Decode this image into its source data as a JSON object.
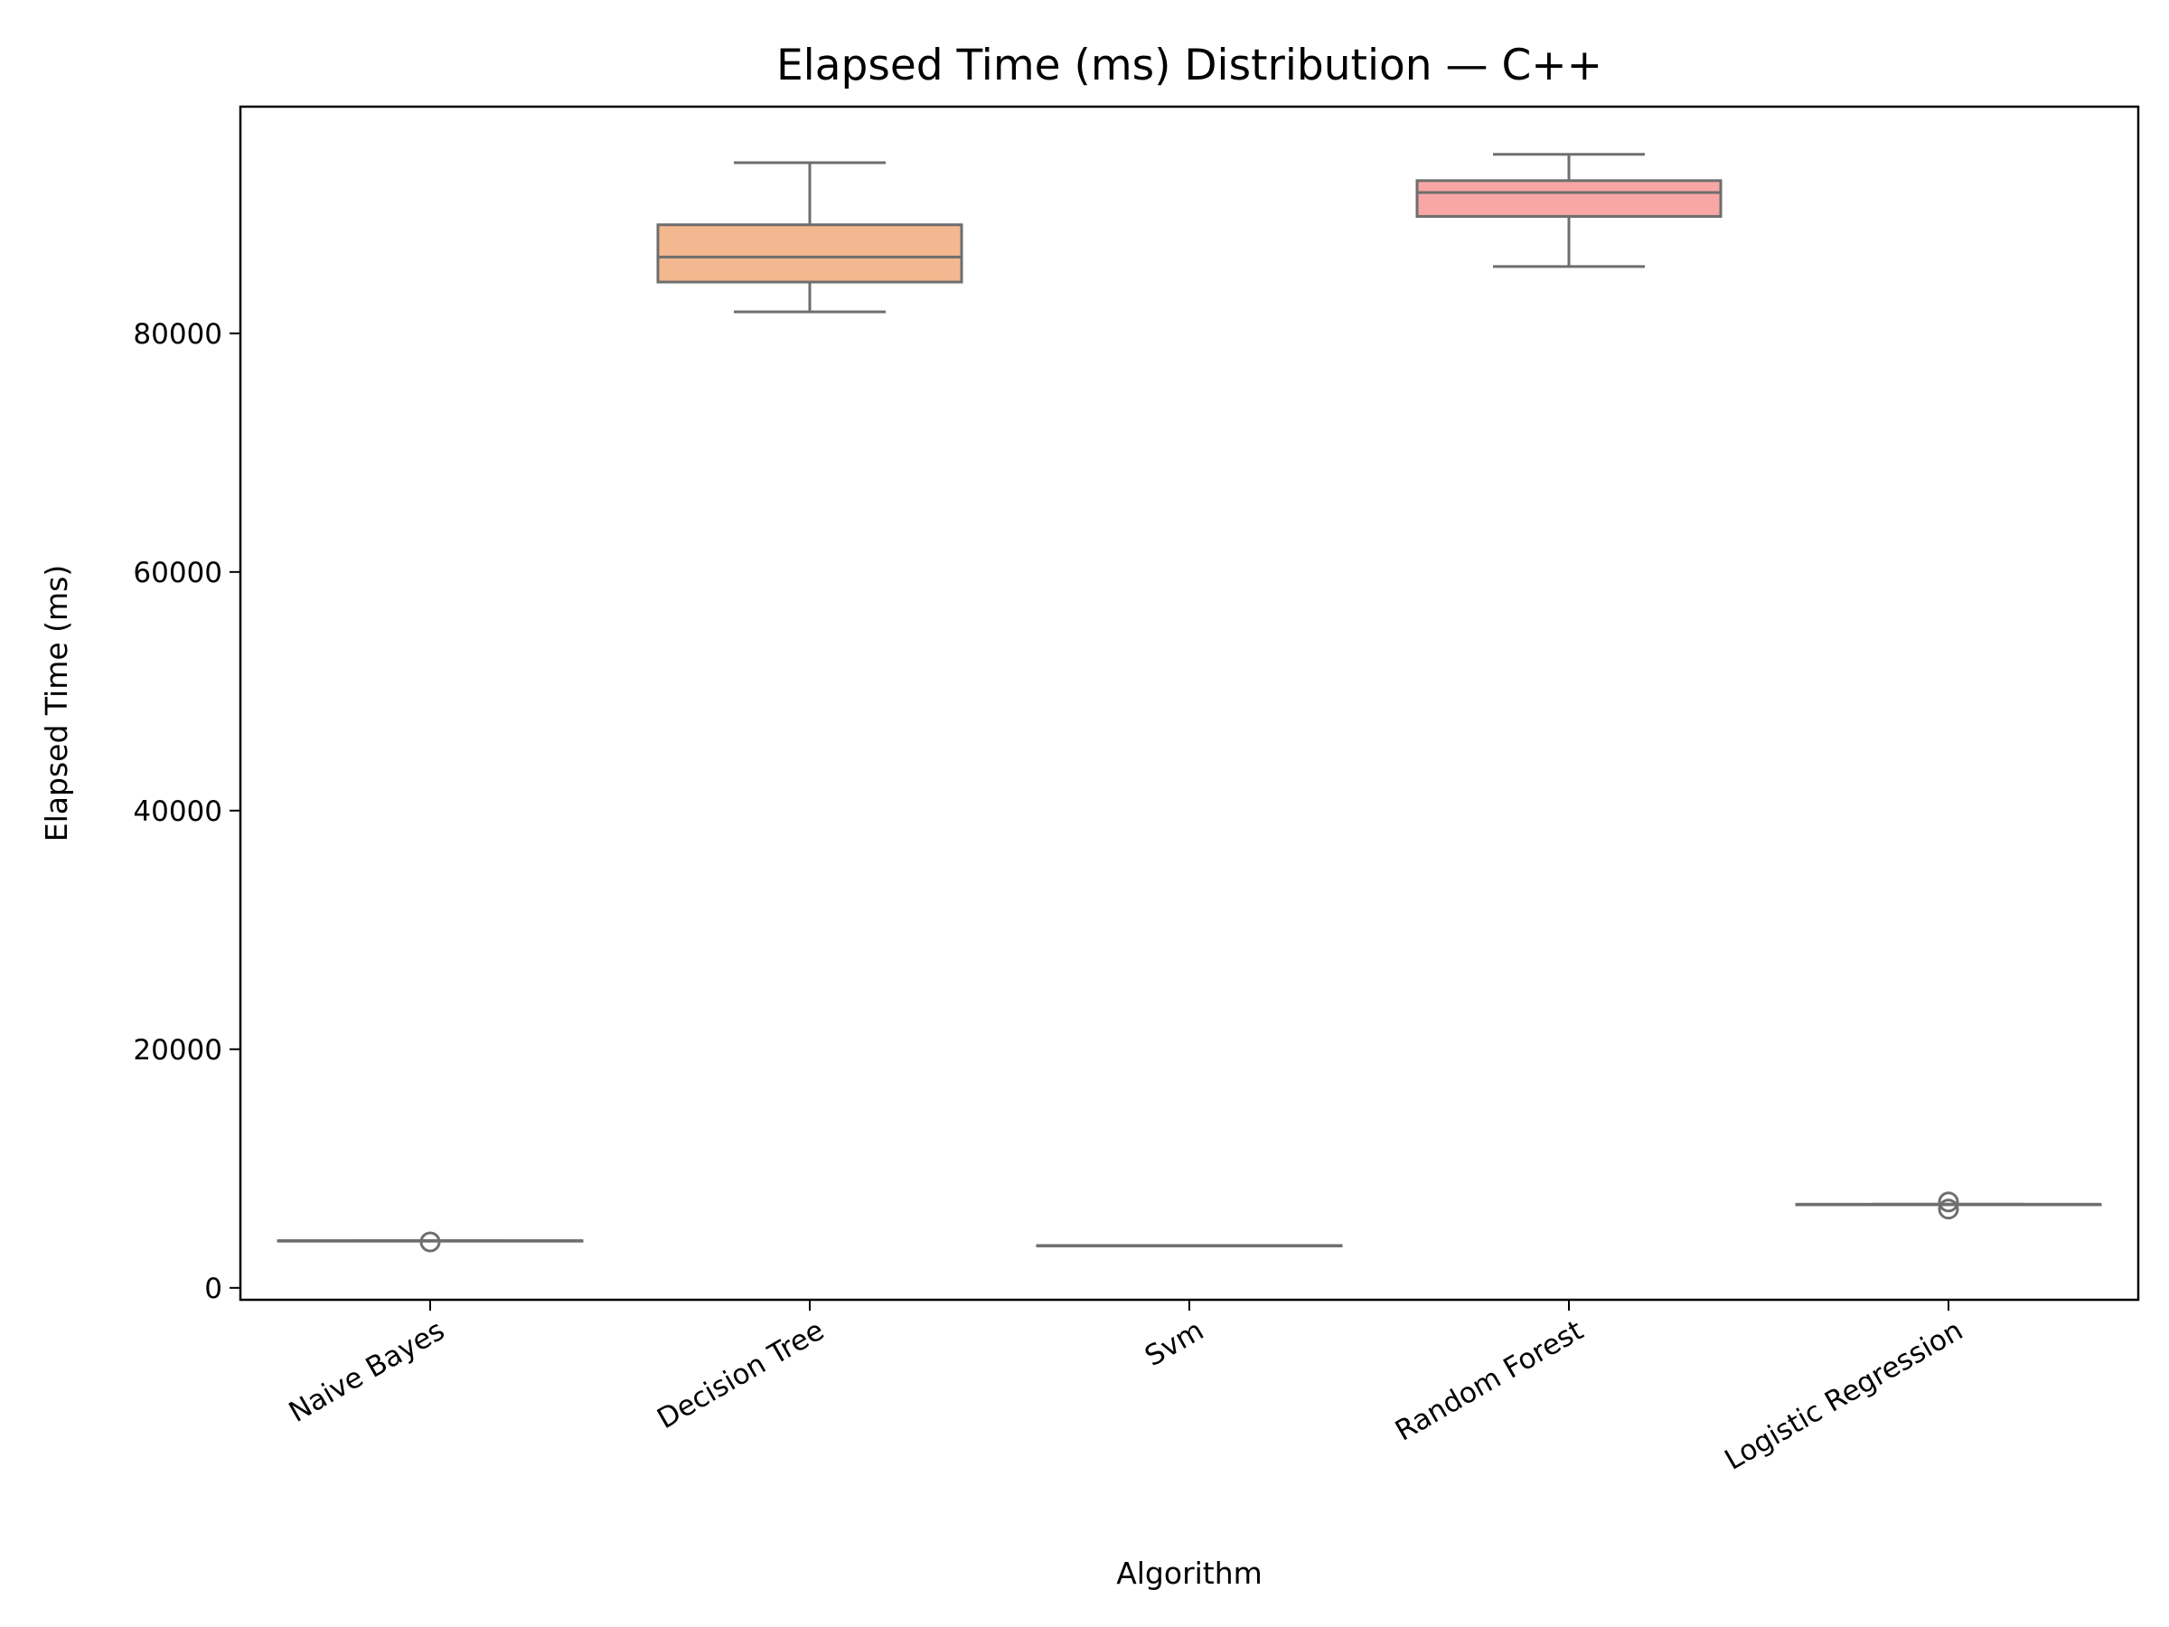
{
  "chart_data": {
    "type": "box",
    "title": "Elapsed Time (ms) Distribution — C++",
    "xlabel": "Algorithm",
    "ylabel": "Elapsed Time (ms)",
    "ylim": [
      -1000,
      99000
    ],
    "yticks": [
      0,
      20000,
      40000,
      60000,
      80000
    ],
    "ytick_labels": [
      "0",
      "20000",
      "40000",
      "60000",
      "80000"
    ],
    "grid": false,
    "categories": [
      "Naive Bayes",
      "Decision Tree",
      "Svm",
      "Random Forest",
      "Logistic Regression"
    ],
    "boxes": [
      {
        "category": "Naive Bayes",
        "color": "#8dd3c7",
        "whisker_low": 3950,
        "q1": 3950,
        "median": 3950,
        "q3": 3950,
        "whisker_high": 3950,
        "outliers": [
          3850
        ]
      },
      {
        "category": "Decision Tree",
        "color": "#f4b890",
        "whisker_low": 81800,
        "q1": 84300,
        "median": 86400,
        "q3": 89100,
        "whisker_high": 94300
      },
      {
        "category": "Svm",
        "color": "#ffffb3",
        "whisker_low": 3550,
        "q1": 3550,
        "median": 3550,
        "q3": 3550,
        "whisker_high": 3550,
        "outliers": []
      },
      {
        "category": "Random Forest",
        "color": "#f9a6a6",
        "whisker_low": 85600,
        "q1": 89800,
        "median": 91800,
        "q3": 92800,
        "whisker_high": 95000,
        "outliers": []
      },
      {
        "category": "Logistic Regression",
        "color": "#bebada",
        "whisker_low": 7000,
        "q1": 7000,
        "median": 7000,
        "q3": 7000,
        "whisker_high": 7000,
        "outliers": [
          6600,
          7200
        ]
      }
    ],
    "style": {
      "line_color": "#6e6e6e",
      "axis_color": "#000000"
    }
  }
}
